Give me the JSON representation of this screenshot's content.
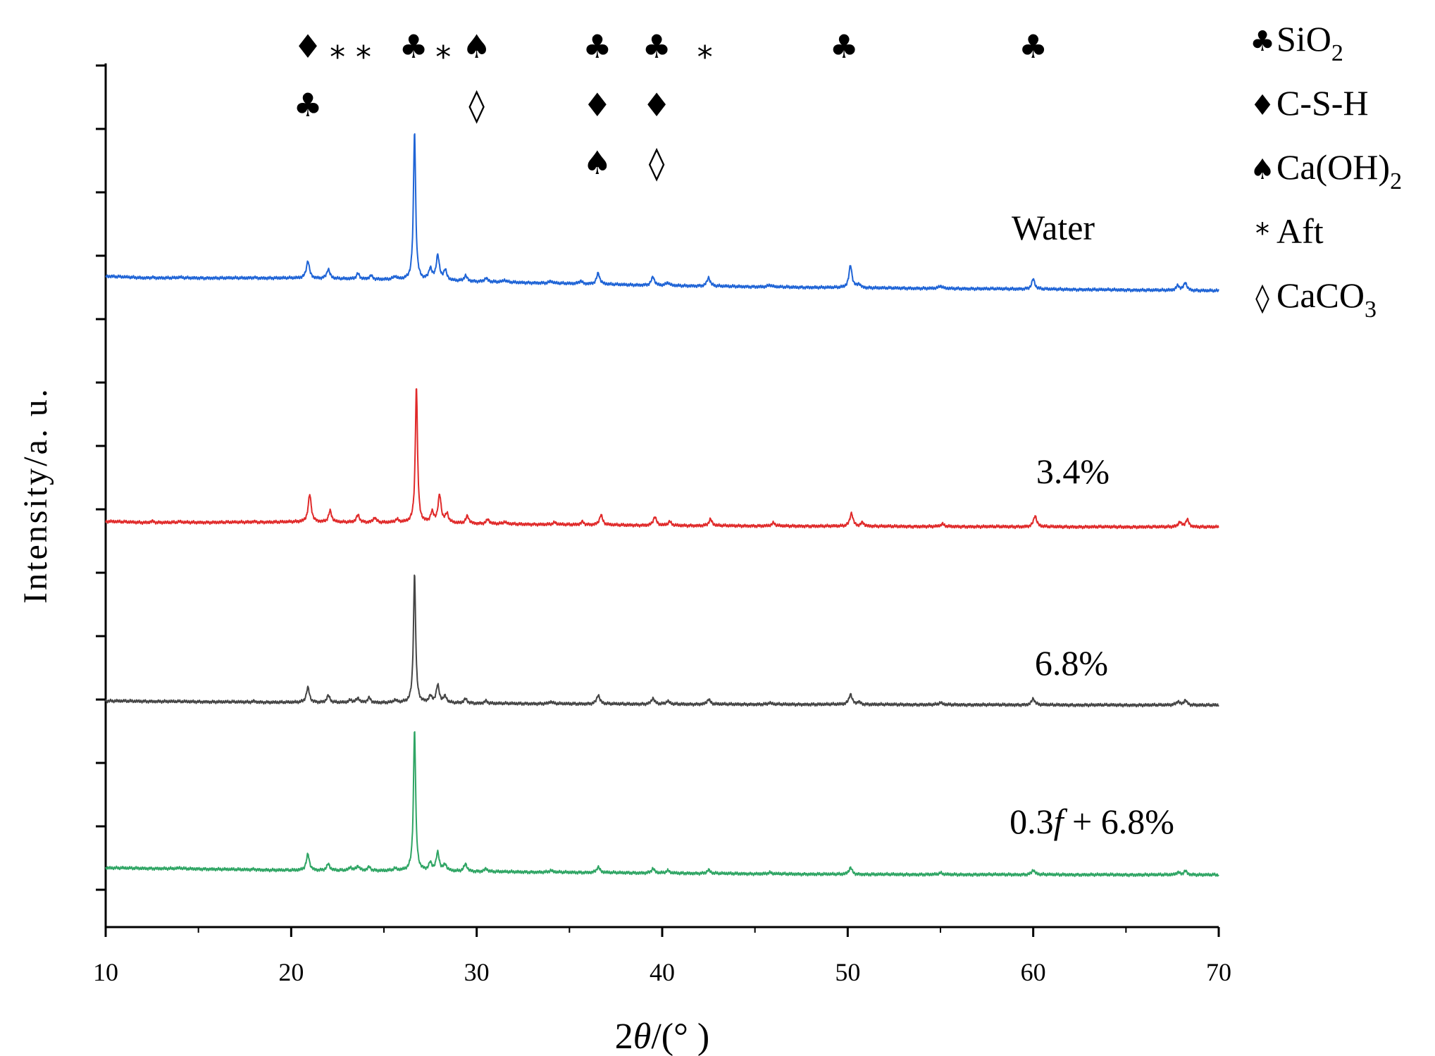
{
  "chart_data": {
    "type": "line",
    "title": "",
    "xlabel_num": "2",
    "xlabel_theta": "θ",
    "xlabel_unit": "/(°  )",
    "ylabel": "Intensity/a. u.",
    "xlim": [
      10,
      70
    ],
    "xticks": [
      "10",
      "20",
      "30",
      "40",
      "50",
      "60",
      "70"
    ],
    "series": [
      {
        "name": "Water",
        "label": "Water",
        "color": "#1f64d6",
        "baseline": [
          [
            10,
            0.0
          ],
          [
            12,
            -0.7
          ],
          [
            20,
            -0.8
          ],
          [
            26,
            -1.5
          ],
          [
            30,
            -2.2
          ],
          [
            40,
            -3.8
          ],
          [
            50,
            -4.7
          ],
          [
            60,
            -5.2
          ],
          [
            70,
            -5.9
          ]
        ],
        "peaks": [
          [
            12.5,
            0.3
          ],
          [
            14,
            0.3
          ],
          [
            18,
            0.3
          ],
          [
            20.9,
            7.0
          ],
          [
            22.0,
            3.8
          ],
          [
            23.6,
            2.2
          ],
          [
            24.3,
            1.5
          ],
          [
            25.6,
            1.2
          ],
          [
            26.65,
            60.0
          ],
          [
            27.5,
            4.5
          ],
          [
            27.9,
            10.0
          ],
          [
            28.3,
            4.0
          ],
          [
            29.4,
            2.2
          ],
          [
            30.5,
            1.5
          ],
          [
            31.5,
            0.8
          ],
          [
            34.0,
            0.8
          ],
          [
            35.6,
            1.2
          ],
          [
            36.55,
            4.5
          ],
          [
            39.5,
            3.5
          ],
          [
            40.3,
            1.2
          ],
          [
            42.5,
            3.5
          ],
          [
            45.8,
            0.8
          ],
          [
            50.15,
            9.0
          ],
          [
            50.6,
            1.5
          ],
          [
            55.0,
            1.0
          ],
          [
            60.0,
            4.0
          ],
          [
            67.8,
            2.0
          ],
          [
            68.2,
            3.2
          ]
        ]
      },
      {
        "name": "3.4%",
        "label": "3.4%",
        "color": "#e02a2a",
        "baseline": [
          [
            10,
            0.0
          ],
          [
            12,
            -0.5
          ],
          [
            20,
            -0.3
          ],
          [
            26,
            -0.6
          ],
          [
            30,
            -1.0
          ],
          [
            40,
            -1.7
          ],
          [
            50,
            -2.0
          ],
          [
            60,
            -2.2
          ],
          [
            70,
            -2.3
          ]
        ],
        "peaks": [
          [
            12.5,
            0.6
          ],
          [
            14,
            0.3
          ],
          [
            18,
            0.3
          ],
          [
            21.0,
            11.0
          ],
          [
            22.1,
            4.5
          ],
          [
            23.6,
            3.0
          ],
          [
            24.5,
            2.0
          ],
          [
            25.7,
            1.2
          ],
          [
            26.75,
            55.0
          ],
          [
            27.6,
            4.0
          ],
          [
            28.0,
            11.0
          ],
          [
            28.4,
            3.5
          ],
          [
            29.5,
            3.0
          ],
          [
            30.6,
            1.8
          ],
          [
            31.5,
            0.8
          ],
          [
            34.2,
            0.8
          ],
          [
            35.7,
            1.2
          ],
          [
            36.7,
            4.0
          ],
          [
            39.6,
            3.5
          ],
          [
            40.4,
            1.5
          ],
          [
            42.6,
            2.6
          ],
          [
            46.0,
            1.2
          ],
          [
            50.2,
            5.3
          ],
          [
            50.8,
            1.5
          ],
          [
            55.1,
            1.0
          ],
          [
            60.1,
            4.5
          ],
          [
            67.9,
            2.0
          ],
          [
            68.3,
            3.0
          ]
        ]
      },
      {
        "name": "6.8%",
        "label": "6.8%",
        "color": "#454545",
        "baseline": [
          [
            10,
            0.0
          ],
          [
            15,
            -0.3
          ],
          [
            20,
            -0.6
          ],
          [
            26,
            -0.8
          ],
          [
            30,
            -1.0
          ],
          [
            40,
            -1.3
          ],
          [
            50,
            -1.4
          ],
          [
            60,
            -1.6
          ],
          [
            70,
            -1.7
          ]
        ],
        "peaks": [
          [
            18,
            0.4
          ],
          [
            20.9,
            6.0
          ],
          [
            22.0,
            2.8
          ],
          [
            23.2,
            1.0
          ],
          [
            23.6,
            1.8
          ],
          [
            24.2,
            2.0
          ],
          [
            25.6,
            1.0
          ],
          [
            26.65,
            52.0
          ],
          [
            27.5,
            2.5
          ],
          [
            27.9,
            7.0
          ],
          [
            28.3,
            2.5
          ],
          [
            29.4,
            1.8
          ],
          [
            30.5,
            1.0
          ],
          [
            34.0,
            0.8
          ],
          [
            36.55,
            3.6
          ],
          [
            39.5,
            2.4
          ],
          [
            40.3,
            1.2
          ],
          [
            42.5,
            2.0
          ],
          [
            45.8,
            0.6
          ],
          [
            50.15,
            4.2
          ],
          [
            50.6,
            1.0
          ],
          [
            55.0,
            0.8
          ],
          [
            60.0,
            2.6
          ],
          [
            67.8,
            1.5
          ],
          [
            68.2,
            2.0
          ]
        ]
      },
      {
        "name": "0.3f + 6.8%",
        "label_pre": "0.3",
        "label_f": "f",
        "label_post": " + 6.8%",
        "color": "#2fa564",
        "baseline": [
          [
            10,
            0.0
          ],
          [
            15,
            -0.4
          ],
          [
            20,
            -1.0
          ],
          [
            26,
            -1.2
          ],
          [
            30,
            -1.5
          ],
          [
            40,
            -2.1
          ],
          [
            50,
            -2.6
          ],
          [
            60,
            -2.7
          ],
          [
            70,
            -2.8
          ]
        ],
        "peaks": [
          [
            14,
            0.3
          ],
          [
            18,
            0.3
          ],
          [
            20.9,
            6.5
          ],
          [
            22.0,
            2.6
          ],
          [
            23.2,
            1.2
          ],
          [
            23.6,
            1.8
          ],
          [
            24.2,
            1.5
          ],
          [
            25.6,
            0.8
          ],
          [
            26.65,
            57.0
          ],
          [
            27.5,
            3.0
          ],
          [
            27.9,
            7.3
          ],
          [
            28.3,
            2.5
          ],
          [
            29.4,
            3.0
          ],
          [
            30.5,
            1.2
          ],
          [
            34.0,
            0.7
          ],
          [
            36.55,
            2.3
          ],
          [
            39.5,
            1.8
          ],
          [
            40.3,
            1.0
          ],
          [
            42.5,
            1.4
          ],
          [
            45.8,
            0.5
          ],
          [
            50.15,
            2.8
          ],
          [
            55.0,
            0.6
          ],
          [
            60.0,
            1.9
          ],
          [
            67.8,
            1.0
          ],
          [
            68.2,
            1.6
          ]
        ]
      }
    ],
    "phase_markers": [
      {
        "row": 1,
        "x": 20.9,
        "symbol": "♦"
      },
      {
        "row": 1,
        "x": 22.5,
        "symbol": "*"
      },
      {
        "row": 1,
        "x": 23.9,
        "symbol": "*"
      },
      {
        "row": 1,
        "x": 26.6,
        "symbol": "♣"
      },
      {
        "row": 1,
        "x": 28.2,
        "symbol": "*"
      },
      {
        "row": 1,
        "x": 30.0,
        "symbol": "♠"
      },
      {
        "row": 1,
        "x": 36.5,
        "symbol": "♣"
      },
      {
        "row": 1,
        "x": 39.7,
        "symbol": "♣"
      },
      {
        "row": 1,
        "x": 42.3,
        "symbol": "*"
      },
      {
        "row": 1,
        "x": 49.8,
        "symbol": "♣"
      },
      {
        "row": 1,
        "x": 60.0,
        "symbol": "♣"
      },
      {
        "row": 2,
        "x": 20.9,
        "symbol": "♣"
      },
      {
        "row": 2,
        "x": 30.0,
        "symbol": "◊"
      },
      {
        "row": 2,
        "x": 36.5,
        "symbol": "♦"
      },
      {
        "row": 2,
        "x": 39.7,
        "symbol": "♦"
      },
      {
        "row": 3,
        "x": 36.5,
        "symbol": "♠"
      },
      {
        "row": 3,
        "x": 39.7,
        "symbol": "◊"
      }
    ],
    "legend": [
      {
        "symbol": "♣",
        "text": "SiO",
        "sub": "2",
        "tail": ""
      },
      {
        "symbol": "♦",
        "text": "C-S-H",
        "sub": "",
        "tail": ""
      },
      {
        "symbol": "♠",
        "text": "Ca(OH)",
        "sub": "2",
        "tail": ""
      },
      {
        "symbol": "*",
        "text": "Aft",
        "sub": "",
        "tail": ""
      },
      {
        "symbol": "◊",
        "text": "CaCO",
        "sub": "3",
        "tail": ""
      }
    ],
    "legend_position": "top-right"
  }
}
